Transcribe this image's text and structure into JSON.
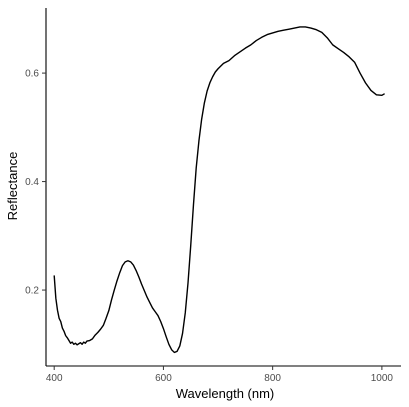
{
  "chart_data": {
    "type": "line",
    "title": "",
    "xlabel": "Wavelength (nm)",
    "ylabel": "Reflectance",
    "xlim": [
      385,
      1035
    ],
    "ylim": [
      0.06,
      0.72
    ],
    "x_ticks": [
      400,
      600,
      800,
      1000
    ],
    "x_tick_labels": [
      "400",
      "600",
      "800",
      "1000"
    ],
    "y_ticks": [
      0.2,
      0.4,
      0.6
    ],
    "y_tick_labels": [
      "0.2",
      "0.4",
      "0.6"
    ],
    "grid": false,
    "legend": "none",
    "line_color": "#000000",
    "series": [
      {
        "x": [
          400,
          403,
          406,
          409,
          412,
          415,
          418,
          421,
          424,
          427,
          430,
          433,
          436,
          439,
          442,
          445,
          448,
          451,
          454,
          457,
          460,
          465,
          470,
          475,
          480,
          485,
          490,
          495,
          500,
          505,
          510,
          515,
          520,
          525,
          530,
          535,
          540,
          545,
          550,
          555,
          560,
          565,
          570,
          575,
          580,
          585,
          590,
          595,
          600,
          605,
          610,
          615,
          620,
          625,
          630,
          635,
          640,
          645,
          650,
          655,
          660,
          665,
          670,
          675,
          680,
          685,
          690,
          695,
          700,
          710,
          720,
          730,
          740,
          750,
          760,
          770,
          780,
          790,
          800,
          810,
          820,
          830,
          840,
          850,
          860,
          870,
          880,
          890,
          900,
          910,
          920,
          930,
          940,
          950,
          960,
          970,
          980,
          990,
          1000,
          1005
        ],
        "y": [
          0.227,
          0.185,
          0.163,
          0.148,
          0.142,
          0.13,
          0.124,
          0.116,
          0.112,
          0.107,
          0.102,
          0.104,
          0.1,
          0.102,
          0.099,
          0.101,
          0.103,
          0.1,
          0.104,
          0.102,
          0.106,
          0.107,
          0.11,
          0.117,
          0.122,
          0.128,
          0.135,
          0.148,
          0.162,
          0.182,
          0.2,
          0.217,
          0.232,
          0.245,
          0.252,
          0.254,
          0.252,
          0.246,
          0.236,
          0.224,
          0.211,
          0.199,
          0.187,
          0.177,
          0.167,
          0.16,
          0.153,
          0.142,
          0.129,
          0.114,
          0.1,
          0.09,
          0.085,
          0.087,
          0.097,
          0.12,
          0.158,
          0.213,
          0.282,
          0.357,
          0.425,
          0.475,
          0.515,
          0.545,
          0.567,
          0.582,
          0.593,
          0.602,
          0.608,
          0.618,
          0.623,
          0.632,
          0.639,
          0.646,
          0.652,
          0.66,
          0.666,
          0.671,
          0.674,
          0.677,
          0.679,
          0.681,
          0.683,
          0.685,
          0.685,
          0.683,
          0.68,
          0.675,
          0.665,
          0.652,
          0.645,
          0.638,
          0.63,
          0.62,
          0.6,
          0.582,
          0.568,
          0.56,
          0.559,
          0.562
        ]
      }
    ]
  }
}
